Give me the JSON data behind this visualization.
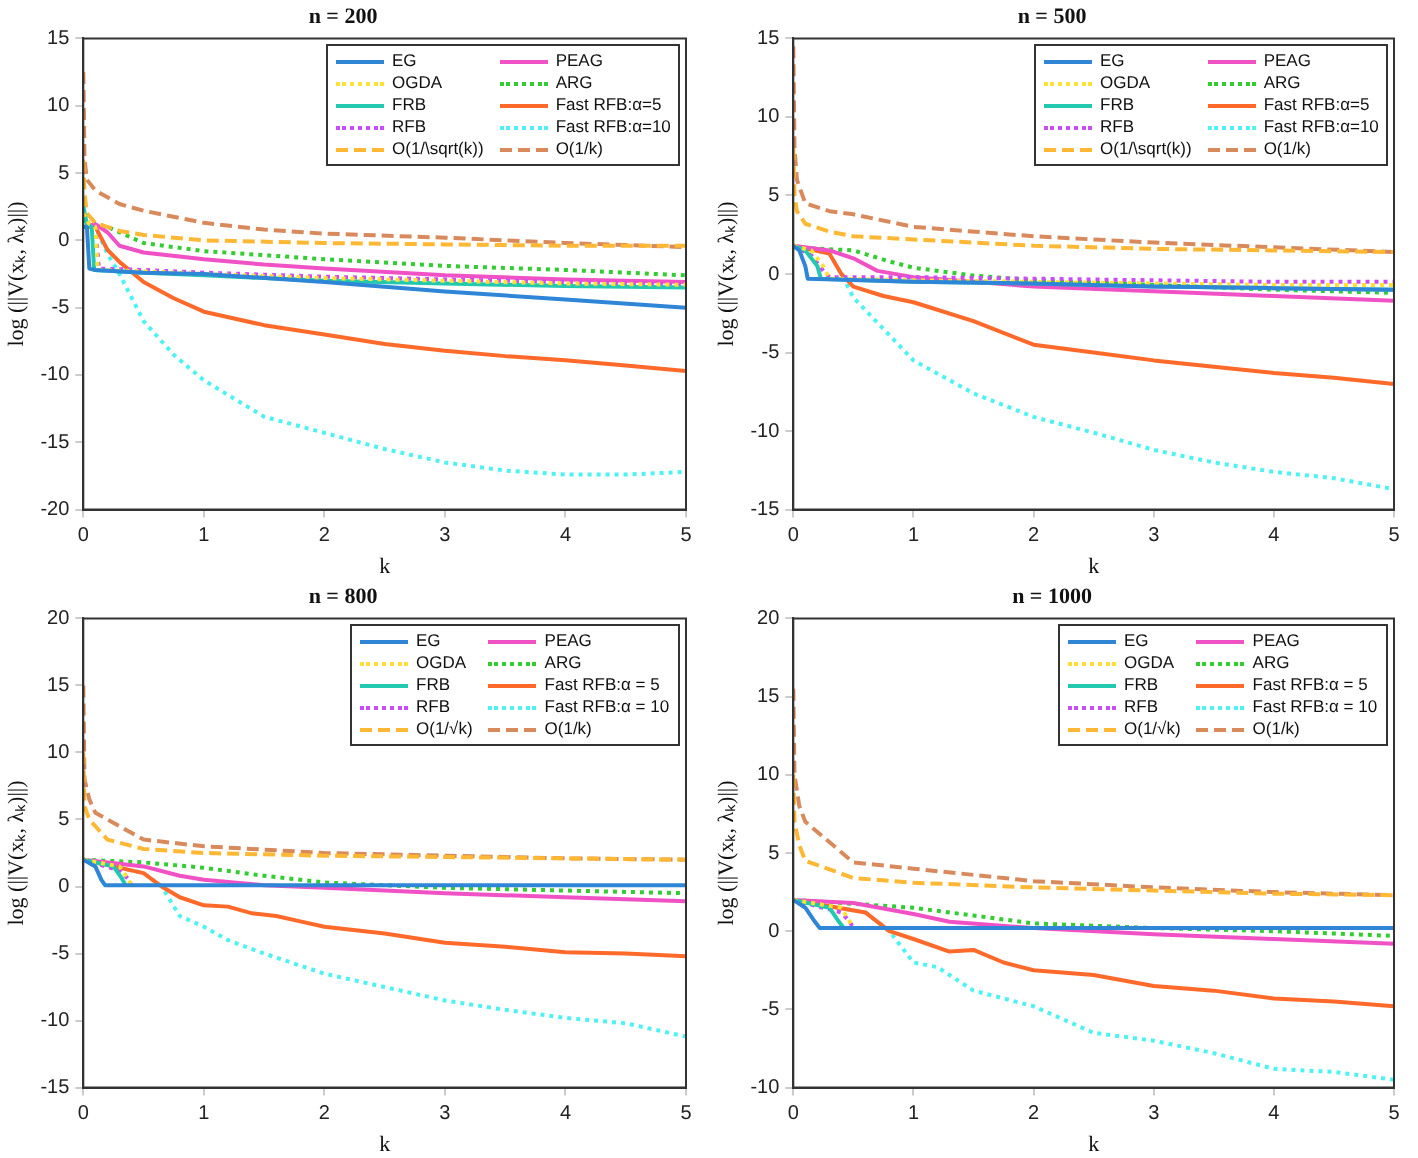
{
  "chart_data": [
    {
      "type": "line",
      "title": "n = 200",
      "xlabel": "k",
      "ylabel": "log (||V(xₖ, λₖ)||)",
      "xlim": [
        0,
        5
      ],
      "xticks": [
        0,
        1,
        2,
        3,
        4,
        5
      ],
      "ylim": [
        -20,
        15
      ],
      "yticks": [
        -20,
        -15,
        -10,
        -5,
        0,
        5,
        10,
        15
      ],
      "legend": "top right",
      "series": [
        {
          "name": "EG",
          "color": "#2f86d6",
          "line_style": "solid",
          "x": [
            0,
            0.03,
            0.05,
            0.1,
            0.5,
            1,
            2,
            3,
            4,
            5
          ],
          "values": [
            1,
            1,
            -2.1,
            -2.2,
            -2.4,
            -2.5,
            -3.1,
            -3.8,
            -4.4,
            -5.0
          ]
        },
        {
          "name": "OGDA",
          "color": "#ffe033",
          "line_style": "dotted",
          "x": [
            0,
            0.05,
            0.1,
            0.12,
            0.5,
            1,
            2,
            3,
            4,
            5
          ],
          "values": [
            2,
            1.2,
            1,
            -2.2,
            -2.3,
            -2.5,
            -2.8,
            -3.0,
            -3.2,
            -3.3
          ]
        },
        {
          "name": "FRB",
          "color": "#22c9b0",
          "line_style": "solid",
          "x": [
            0,
            0.03,
            0.07,
            0.09,
            0.5,
            1,
            2,
            3,
            4,
            5
          ],
          "values": [
            2.5,
            1.2,
            1,
            -2.2,
            -2.4,
            -2.6,
            -3.0,
            -3.2,
            -3.4,
            -3.5
          ]
        },
        {
          "name": "RFB",
          "color": "#c94cf5",
          "line_style": "dotted",
          "x": [
            0,
            0.05,
            0.1,
            0.13,
            0.5,
            1,
            2,
            3,
            4,
            5
          ],
          "values": [
            2,
            1.2,
            1,
            -2.1,
            -2.2,
            -2.4,
            -2.7,
            -2.9,
            -3.1,
            -3.3
          ]
        },
        {
          "name": "O(1/\\sqrt(k))",
          "color": "#ffb833",
          "line_style": "dashed",
          "x": [
            0,
            0.01,
            0.03,
            0.1,
            0.3,
            0.5,
            1,
            2,
            3,
            4,
            5
          ],
          "values": [
            6,
            3.5,
            2,
            1.3,
            0.7,
            0.4,
            0,
            -0.2,
            -0.3,
            -0.4,
            -0.4
          ]
        },
        {
          "name": "PEAG",
          "color": "#f052c6",
          "line_style": "solid",
          "x": [
            0,
            0.1,
            0.2,
            0.3,
            0.5,
            1,
            1.5,
            2,
            3,
            4,
            5
          ],
          "values": [
            1,
            1.2,
            0.6,
            -0.4,
            -0.9,
            -1.4,
            -1.8,
            -2.1,
            -2.6,
            -2.9,
            -3.1
          ]
        },
        {
          "name": "ARG",
          "color": "#33cc33",
          "line_style": "dotted",
          "x": [
            0,
            0.2,
            0.5,
            1,
            1.5,
            2,
            3,
            4,
            5
          ],
          "values": [
            1.5,
            1.0,
            -0.2,
            -0.8,
            -1.1,
            -1.4,
            -1.9,
            -2.2,
            -2.6
          ]
        },
        {
          "name": "Fast RFB:α=5",
          "color": "#ff6a2b",
          "line_style": "solid",
          "x": [
            0,
            0.1,
            0.2,
            0.3,
            0.5,
            0.75,
            1,
            1.5,
            2,
            2.5,
            3,
            3.5,
            4,
            4.5,
            5
          ],
          "values": [
            1,
            1,
            -0.7,
            -1.6,
            -3.1,
            -4.3,
            -5.3,
            -6.3,
            -7.0,
            -7.7,
            -8.2,
            -8.6,
            -8.9,
            -9.3,
            -9.7
          ]
        },
        {
          "name": "Fast RFB:α=10",
          "color": "#4ef2f2",
          "line_style": "dotted",
          "x": [
            0,
            0.1,
            0.2,
            0.3,
            0.5,
            0.75,
            1,
            1.5,
            2,
            2.5,
            3,
            3.5,
            4,
            4.5,
            5
          ],
          "values": [
            1,
            1,
            -1,
            -2.5,
            -6,
            -8.5,
            -10.4,
            -13.1,
            -14.3,
            -15.5,
            -16.5,
            -17.1,
            -17.4,
            -17.4,
            -17.2
          ]
        },
        {
          "name": "O(1/k)",
          "color": "#d98a5c",
          "line_style": "dashed",
          "x": [
            0,
            0.01,
            0.03,
            0.1,
            0.3,
            0.5,
            1,
            1.5,
            2,
            3,
            4,
            5
          ],
          "values": [
            12.5,
            6,
            4.5,
            3.7,
            2.7,
            2.2,
            1.3,
            0.8,
            0.5,
            0.2,
            -0.2,
            -0.5
          ]
        }
      ]
    },
    {
      "type": "line",
      "title": "n = 500",
      "xlabel": "k",
      "ylabel": "log (||V(xₖ, λₖ)||)",
      "xlim": [
        0,
        5
      ],
      "xticks": [
        0,
        1,
        2,
        3,
        4,
        5
      ],
      "ylim": [
        -15,
        15
      ],
      "yticks": [
        -15,
        -10,
        -5,
        0,
        5,
        10,
        15
      ],
      "legend": "top right",
      "series": [
        {
          "name": "EG",
          "color": "#2f86d6",
          "line_style": "solid",
          "x": [
            0,
            0.05,
            0.1,
            0.12,
            1,
            2,
            3,
            4,
            5
          ],
          "values": [
            1.8,
            1.5,
            0.5,
            -0.3,
            -0.5,
            -0.6,
            -0.8,
            -0.9,
            -1.0
          ]
        },
        {
          "name": "OGDA",
          "color": "#ffe033",
          "line_style": "dotted",
          "x": [
            0,
            0.15,
            0.25,
            0.3,
            1,
            2,
            3,
            4,
            5
          ],
          "values": [
            1.8,
            1.5,
            0.5,
            -0.3,
            -0.4,
            -0.5,
            -0.6,
            -0.7,
            -0.7
          ]
        },
        {
          "name": "FRB",
          "color": "#22c9b0",
          "line_style": "solid",
          "x": [
            0,
            0.1,
            0.2,
            0.23,
            1,
            2,
            3,
            4,
            5
          ],
          "values": [
            1.8,
            1.5,
            0.5,
            -0.3,
            -0.5,
            -0.6,
            -0.8,
            -0.9,
            -1.0
          ]
        },
        {
          "name": "RFB",
          "color": "#c94cf5",
          "line_style": "dotted",
          "x": [
            0,
            0.15,
            0.25,
            0.3,
            1,
            2,
            3,
            4,
            5
          ],
          "values": [
            1.8,
            1.2,
            0.2,
            -0.2,
            -0.2,
            -0.3,
            -0.4,
            -0.5,
            -0.5
          ]
        },
        {
          "name": "O(1/\\sqrt(k))",
          "color": "#ffb833",
          "line_style": "dashed",
          "x": [
            0,
            0.01,
            0.03,
            0.1,
            0.3,
            0.5,
            1,
            2,
            3,
            4,
            5
          ],
          "values": [
            8,
            5,
            4,
            3.2,
            2.7,
            2.4,
            2.2,
            1.8,
            1.6,
            1.5,
            1.4
          ]
        },
        {
          "name": "PEAG",
          "color": "#f052c6",
          "line_style": "solid",
          "x": [
            0,
            0.3,
            0.5,
            0.7,
            1,
            1.5,
            2,
            3,
            4,
            5
          ],
          "values": [
            1.8,
            1.5,
            1.0,
            0.2,
            -0.2,
            -0.5,
            -0.8,
            -1.1,
            -1.4,
            -1.7
          ]
        },
        {
          "name": "ARG",
          "color": "#33cc33",
          "line_style": "dotted",
          "x": [
            0,
            0.5,
            0.8,
            1,
            1.5,
            2,
            3,
            4,
            5
          ],
          "values": [
            1.7,
            1.5,
            0.8,
            0.4,
            -0.1,
            -0.4,
            -0.7,
            -1.0,
            -1.2
          ]
        },
        {
          "name": "Fast RFB:α=5",
          "color": "#ff6a2b",
          "line_style": "solid",
          "x": [
            0,
            0.3,
            0.4,
            0.5,
            0.75,
            1,
            1.5,
            2,
            2.5,
            3,
            3.5,
            4,
            4.5,
            5
          ],
          "values": [
            1.8,
            1.3,
            0,
            -0.8,
            -1.4,
            -1.8,
            -3.0,
            -4.5,
            -5.0,
            -5.5,
            -5.9,
            -6.3,
            -6.6,
            -7.0
          ]
        },
        {
          "name": "Fast RFB:α=10",
          "color": "#4ef2f2",
          "line_style": "dotted",
          "x": [
            0,
            0.3,
            0.4,
            0.5,
            0.75,
            1,
            1.5,
            2,
            2.5,
            3,
            3.5,
            4,
            4.5,
            5
          ],
          "values": [
            1.8,
            1.3,
            0,
            -1.5,
            -3.5,
            -5.5,
            -7.6,
            -9.1,
            -10.1,
            -11.2,
            -12.0,
            -12.6,
            -13.0,
            -13.7
          ]
        },
        {
          "name": "O(1/k)",
          "color": "#d98a5c",
          "line_style": "dashed",
          "x": [
            0,
            0.01,
            0.03,
            0.1,
            0.3,
            0.5,
            1,
            2,
            3,
            4,
            5
          ],
          "values": [
            14.5,
            8,
            6,
            4.5,
            4.0,
            3.8,
            3.0,
            2.4,
            2.0,
            1.7,
            1.4
          ]
        }
      ]
    },
    {
      "type": "line",
      "title": "n = 800",
      "xlabel": "k",
      "ylabel": "log (||V(xₖ, λₖ)||)",
      "xlim": [
        0,
        5
      ],
      "xticks": [
        0,
        1,
        2,
        3,
        4,
        5
      ],
      "ylim": [
        -15,
        20
      ],
      "yticks": [
        -15,
        -10,
        -5,
        0,
        5,
        10,
        15,
        20
      ],
      "legend": "top right",
      "series": [
        {
          "name": "EG",
          "color": "#2f86d6",
          "line_style": "solid",
          "x": [
            0,
            0.1,
            0.15,
            0.18,
            1,
            2,
            3,
            4,
            5
          ],
          "values": [
            2,
            1.5,
            0.5,
            0.1,
            0.1,
            0.1,
            0.1,
            0.1,
            0.1
          ]
        },
        {
          "name": "OGDA",
          "color": "#ffe033",
          "line_style": "dotted",
          "x": [
            0,
            0.3,
            0.37,
            0.4
          ],
          "values": [
            2,
            1.5,
            0.6,
            0.1
          ]
        },
        {
          "name": "FRB",
          "color": "#22c9b0",
          "line_style": "solid",
          "x": [
            0,
            0.25,
            0.32,
            0.35
          ],
          "values": [
            2,
            1.5,
            0.6,
            0.1
          ]
        },
        {
          "name": "RFB",
          "color": "#c94cf5",
          "line_style": "dotted",
          "x": [
            0,
            0.3,
            0.37,
            0.4
          ],
          "values": [
            2,
            1.2,
            0.6,
            0.1
          ]
        },
        {
          "name": "O(1/√k)",
          "color": "#ffb833",
          "line_style": "dashed",
          "x": [
            0,
            0.01,
            0.05,
            0.2,
            0.5,
            1,
            2,
            3,
            4,
            5
          ],
          "values": [
            10,
            6,
            5,
            3.5,
            2.8,
            2.5,
            2.3,
            2.2,
            2.1,
            2.0
          ]
        },
        {
          "name": "PEAG",
          "color": "#f052c6",
          "line_style": "solid",
          "x": [
            0,
            0.5,
            0.8,
            1,
            1.5,
            2,
            3,
            4,
            5
          ],
          "values": [
            2,
            1.5,
            0.8,
            0.5,
            0.1,
            -0.1,
            -0.5,
            -0.8,
            -1.1
          ]
        },
        {
          "name": "ARG",
          "color": "#33cc33",
          "line_style": "dotted",
          "x": [
            0,
            0.5,
            1,
            1.5,
            2,
            3,
            4,
            5
          ],
          "values": [
            2,
            1.8,
            1.4,
            0.8,
            0.3,
            -0.1,
            -0.3,
            -0.5
          ]
        },
        {
          "name": "Fast RFB:α = 5",
          "color": "#ff6a2b",
          "line_style": "solid",
          "x": [
            0,
            0.5,
            0.65,
            0.8,
            1,
            1.2,
            1.4,
            1.6,
            1.8,
            2,
            2.5,
            3,
            3.5,
            4,
            4.5,
            5
          ],
          "values": [
            2,
            1.0,
            0,
            -0.8,
            -1.4,
            -1.5,
            -2.0,
            -2.2,
            -2.6,
            -3.0,
            -3.5,
            -4.2,
            -4.5,
            -4.9,
            -5.0,
            -5.2
          ]
        },
        {
          "name": "Fast RFB:α = 10",
          "color": "#4ef2f2",
          "line_style": "dotted",
          "x": [
            0,
            0.5,
            0.65,
            0.8,
            1,
            1.2,
            1.5,
            2,
            2.5,
            3,
            3.5,
            4,
            4.5,
            5
          ],
          "values": [
            2,
            1.0,
            0,
            -2.2,
            -3,
            -4,
            -5,
            -6.5,
            -7.5,
            -8.5,
            -9.2,
            -9.8,
            -10.2,
            -11.2
          ]
        },
        {
          "name": "O(1/k)",
          "color": "#d98a5c",
          "line_style": "dashed",
          "x": [
            0,
            0.01,
            0.05,
            0.1,
            0.5,
            1,
            2,
            3,
            4,
            5
          ],
          "values": [
            15,
            8,
            6.5,
            5.5,
            3.5,
            3.0,
            2.5,
            2.3,
            2.1,
            2.0
          ]
        }
      ]
    },
    {
      "type": "line",
      "title": "n = 1000",
      "xlabel": "k",
      "ylabel": "log (||V(xₖ, λₖ)||)",
      "xlim": [
        0,
        5
      ],
      "xticks": [
        0,
        1,
        2,
        3,
        4,
        5
      ],
      "ylim": [
        -10,
        20
      ],
      "yticks": [
        -10,
        -5,
        0,
        5,
        10,
        15,
        20
      ],
      "legend": "top right",
      "series": [
        {
          "name": "EG",
          "color": "#2f86d6",
          "line_style": "solid",
          "x": [
            0,
            0.1,
            0.18,
            0.22,
            1,
            2,
            3,
            4,
            5
          ],
          "values": [
            2,
            1.5,
            0.6,
            0.2,
            0.2,
            0.2,
            0.2,
            0.2,
            0.2
          ]
        },
        {
          "name": "OGDA",
          "color": "#ffe033",
          "line_style": "dotted",
          "x": [
            0,
            0.4,
            0.47,
            0.5
          ],
          "values": [
            2,
            1.5,
            0.6,
            0.2
          ]
        },
        {
          "name": "FRB",
          "color": "#22c9b0",
          "line_style": "solid",
          "x": [
            0,
            0.3,
            0.38,
            0.42
          ],
          "values": [
            2,
            1.5,
            0.6,
            0.2
          ]
        },
        {
          "name": "RFB",
          "color": "#c94cf5",
          "line_style": "dotted",
          "x": [
            0,
            0.4,
            0.47,
            0.5
          ],
          "values": [
            2,
            1.2,
            0.6,
            0.2
          ]
        },
        {
          "name": "O(1/√k)",
          "color": "#ffb833",
          "line_style": "dashed",
          "x": [
            0,
            0.01,
            0.05,
            0.1,
            0.5,
            1,
            2,
            3,
            4,
            5
          ],
          "values": [
            10,
            7,
            5.5,
            4.5,
            3.4,
            3.1,
            2.8,
            2.6,
            2.4,
            2.3
          ]
        },
        {
          "name": "PEAG",
          "color": "#f052c6",
          "line_style": "solid",
          "x": [
            0,
            0.5,
            1,
            1.3,
            2,
            3,
            4,
            5
          ],
          "values": [
            2,
            1.8,
            1.1,
            0.6,
            0.2,
            -0.2,
            -0.5,
            -0.8
          ]
        },
        {
          "name": "ARG",
          "color": "#33cc33",
          "line_style": "dotted",
          "x": [
            0,
            1,
            1.5,
            2,
            3,
            4,
            5
          ],
          "values": [
            2,
            1.5,
            1.0,
            0.5,
            0.2,
            0,
            -0.3
          ]
        },
        {
          "name": "Fast RFB:α = 5",
          "color": "#ff6a2b",
          "line_style": "solid",
          "x": [
            0,
            0.6,
            0.8,
            1,
            1.3,
            1.5,
            1.75,
            2,
            2.5,
            3,
            3.5,
            4,
            4.5,
            5
          ],
          "values": [
            2,
            1.2,
            0,
            -0.5,
            -1.3,
            -1.2,
            -2.0,
            -2.5,
            -2.8,
            -3.5,
            -3.8,
            -4.3,
            -4.5,
            -4.8
          ]
        },
        {
          "name": "Fast RFB:α = 10",
          "color": "#4ef2f2",
          "line_style": "dotted",
          "x": [
            0,
            0.6,
            0.8,
            1,
            1.2,
            1.5,
            2,
            2.5,
            3,
            3.5,
            4,
            4.5,
            5
          ],
          "values": [
            2,
            1.2,
            0,
            -2,
            -2.3,
            -3.8,
            -4.8,
            -6.5,
            -7.0,
            -7.8,
            -8.8,
            -9.0,
            -9.5
          ]
        },
        {
          "name": "O(1/k)",
          "color": "#d98a5c",
          "line_style": "dashed",
          "x": [
            0,
            0.01,
            0.05,
            0.1,
            0.5,
            1,
            2,
            3,
            4,
            5
          ],
          "values": [
            15.5,
            10,
            8,
            7,
            4.4,
            4.0,
            3.2,
            2.8,
            2.5,
            2.3
          ]
        }
      ]
    }
  ]
}
